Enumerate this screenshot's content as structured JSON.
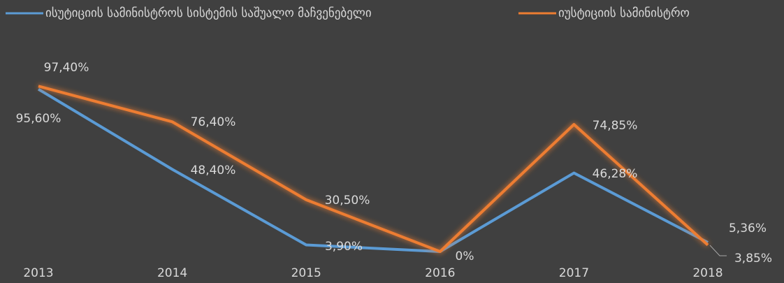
{
  "chart_data": {
    "type": "line",
    "categories": [
      "2013",
      "2014",
      "2015",
      "2016",
      "2017",
      "2018"
    ],
    "series": [
      {
        "name": "ისუტიციის სამინისტროს  სისტემის საშუალო მაჩვენებელი",
        "color": "#5b9bd5",
        "values": [
          95.6,
          48.4,
          3.9,
          0,
          46.28,
          5.36
        ],
        "value_labels": [
          "95,60%",
          "48,40%",
          "3,90%",
          null,
          "46,28%",
          "5,36%"
        ]
      },
      {
        "name": "იუსტიციის სამინისტრო",
        "color": "#ed7d31",
        "values": [
          97.4,
          76.4,
          30.5,
          0,
          74.85,
          3.85
        ],
        "value_labels": [
          "97,40%",
          "76,40%",
          "30,50%",
          "0%",
          "74,85%",
          "3,85%"
        ]
      }
    ]
  }
}
